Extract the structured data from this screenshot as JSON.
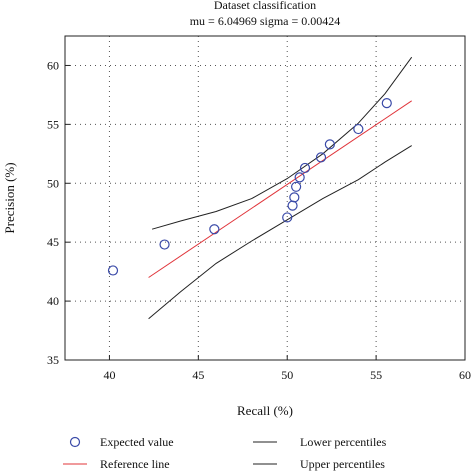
{
  "chart_data": {
    "type": "scatter",
    "title": "Dataset classification",
    "subtitle": "mu = 6.04969 sigma = 0.00424",
    "xlabel": "Recall (%)",
    "ylabel": "Precision (%)",
    "xlim": [
      37.5,
      60
    ],
    "ylim": [
      35,
      62.5
    ],
    "xticks": [
      40,
      45,
      50,
      55,
      60
    ],
    "yticks": [
      35,
      40,
      45,
      50,
      55,
      60
    ],
    "grid": true,
    "legend_position": "bottom",
    "series": [
      {
        "name": "Expected value",
        "kind": "markers",
        "color": "#3a4aa8",
        "points": [
          {
            "x": 40.2,
            "y": 42.6
          },
          {
            "x": 43.1,
            "y": 44.8
          },
          {
            "x": 45.9,
            "y": 46.1
          },
          {
            "x": 50.0,
            "y": 47.1
          },
          {
            "x": 50.3,
            "y": 48.1
          },
          {
            "x": 50.4,
            "y": 48.8
          },
          {
            "x": 50.5,
            "y": 49.7
          },
          {
            "x": 50.7,
            "y": 50.5
          },
          {
            "x": 51.0,
            "y": 51.3
          },
          {
            "x": 51.9,
            "y": 52.2
          },
          {
            "x": 52.4,
            "y": 53.3
          },
          {
            "x": 54.0,
            "y": 54.6
          },
          {
            "x": 55.6,
            "y": 56.8
          }
        ]
      },
      {
        "name": "Reference line",
        "kind": "line",
        "color": "#e0343a",
        "points": [
          {
            "x": 42.2,
            "y": 42.0
          },
          {
            "x": 57.0,
            "y": 57.0
          }
        ]
      },
      {
        "name": "Lower percentiles",
        "kind": "line",
        "color": "#222222",
        "points": [
          {
            "x": 42.4,
            "y": 46.1
          },
          {
            "x": 44.0,
            "y": 46.8
          },
          {
            "x": 46.0,
            "y": 47.6
          },
          {
            "x": 48.0,
            "y": 48.7
          },
          {
            "x": 50.0,
            "y": 50.4
          },
          {
            "x": 52.0,
            "y": 52.5
          },
          {
            "x": 54.0,
            "y": 55.1
          },
          {
            "x": 55.5,
            "y": 57.6
          },
          {
            "x": 57.0,
            "y": 60.7
          }
        ]
      },
      {
        "name": "Upper percentiles",
        "kind": "line",
        "color": "#222222",
        "points": [
          {
            "x": 42.2,
            "y": 38.5
          },
          {
            "x": 44.0,
            "y": 40.8
          },
          {
            "x": 46.0,
            "y": 43.2
          },
          {
            "x": 48.0,
            "y": 45.1
          },
          {
            "x": 50.0,
            "y": 46.9
          },
          {
            "x": 52.0,
            "y": 48.7
          },
          {
            "x": 54.0,
            "y": 50.3
          },
          {
            "x": 55.5,
            "y": 51.8
          },
          {
            "x": 57.0,
            "y": 53.2
          }
        ]
      }
    ]
  }
}
